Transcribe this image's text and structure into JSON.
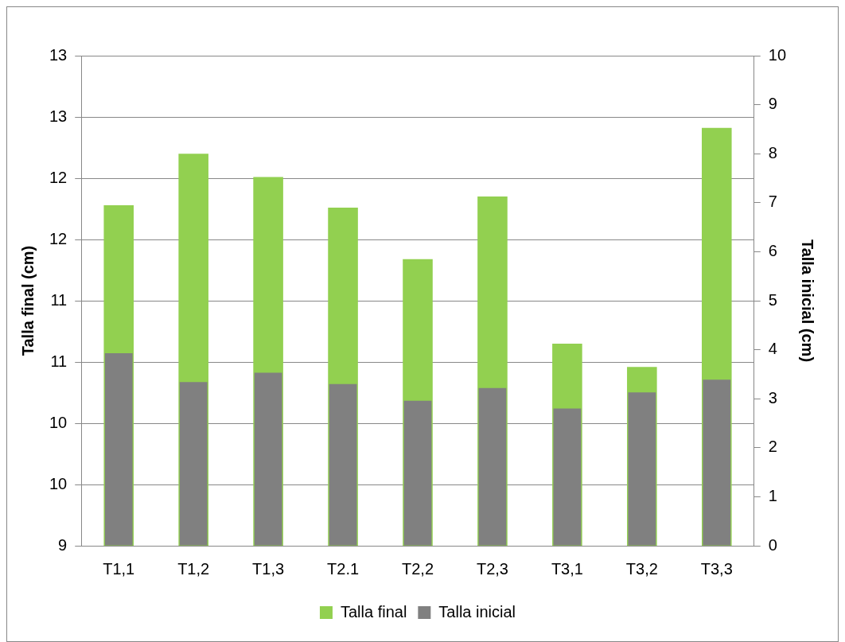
{
  "chart_data": {
    "type": "bar",
    "ylabel": "Talla final (cm)",
    "y2label": "Talla inicial (cm)",
    "categories": [
      "T1,1",
      "T1,2",
      "T1,3",
      "T2.1",
      "T2,2",
      "T2,3",
      "T3,1",
      "T3,2",
      "T3,3"
    ],
    "series": [
      {
        "name": "Talla final",
        "color": "#92d050",
        "values": [
          11.78,
          12.2,
          12.01,
          11.76,
          11.34,
          11.85,
          10.65,
          10.46,
          12.41
        ]
      },
      {
        "name": "Talla inicial",
        "color": "#808080",
        "axis": "y2",
        "values": [
          3.93,
          3.34,
          3.53,
          3.3,
          2.96,
          3.22,
          2.8,
          3.13,
          3.39
        ]
      }
    ],
    "ylim": [
      9,
      13
    ],
    "yticks": [
      9,
      {
        "value": 9.5,
        "label": "10"
      },
      {
        "value": 10,
        "label": "10"
      },
      {
        "value": 10.5,
        "label": "11"
      },
      {
        "value": 11,
        "label": "11"
      },
      {
        "value": 11.5,
        "label": "12"
      },
      {
        "value": 12,
        "label": "12"
      },
      {
        "value": 12.5,
        "label": "13"
      },
      {
        "value": 13,
        "label": "13"
      }
    ],
    "y2lim": [
      0,
      10
    ],
    "y2ticks": [
      0,
      1,
      2,
      3,
      4,
      5,
      6,
      7,
      8,
      9,
      10
    ],
    "grid": "y",
    "legend": "bottom"
  }
}
